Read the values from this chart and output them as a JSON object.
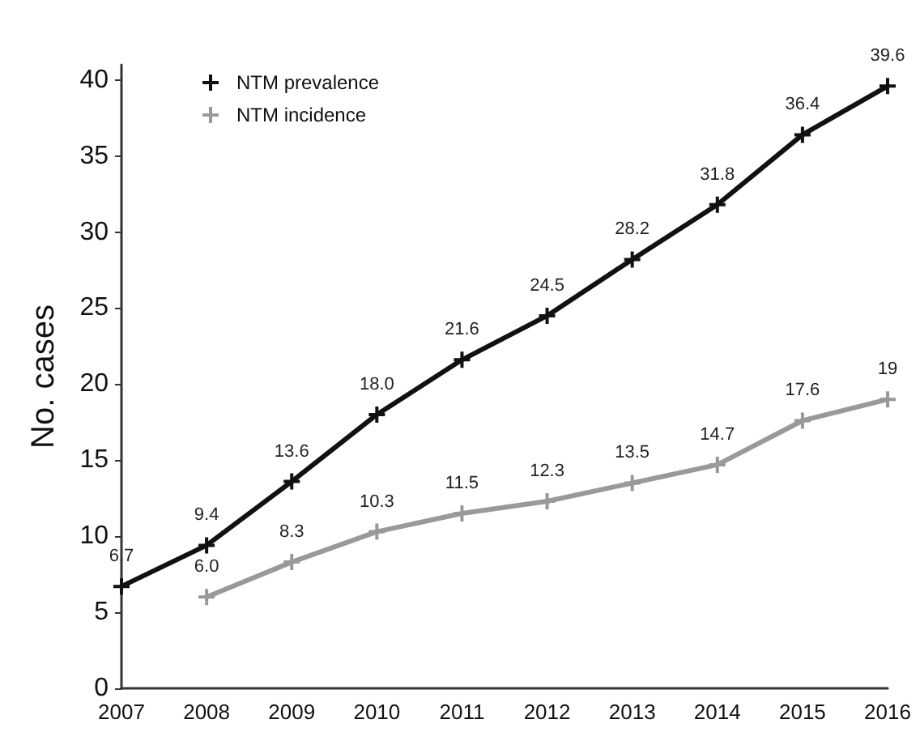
{
  "chart_data": {
    "type": "line",
    "ylabel": "No. cases",
    "categories": [
      "2007",
      "2008",
      "2009",
      "2010",
      "2011",
      "2012",
      "2013",
      "2014",
      "2015",
      "2016"
    ],
    "series": [
      {
        "name": "NTM prevalence",
        "color": "#111111",
        "values": [
          6.7,
          9.4,
          13.6,
          18.0,
          21.6,
          24.5,
          28.2,
          31.8,
          36.4,
          39.6
        ],
        "value_labels": [
          "6.7",
          "9.4",
          "13.6",
          "18.0",
          "21.6",
          "24.5",
          "28.2",
          "31.8",
          "36.4",
          "39.6"
        ]
      },
      {
        "name": "NTM incidence",
        "color": "#999999",
        "values": [
          null,
          6.0,
          8.3,
          10.3,
          11.5,
          12.3,
          13.5,
          14.7,
          17.6,
          19
        ],
        "value_labels": [
          null,
          "6.0",
          "8.3",
          "10.3",
          "11.5",
          "12.3",
          "13.5",
          "14.7",
          "17.6",
          "19"
        ]
      }
    ],
    "ylim": [
      0,
      41
    ],
    "yticks": [
      0,
      5,
      10,
      15,
      20,
      25,
      30,
      35,
      40
    ],
    "grid": false,
    "legend": "top left",
    "marker": "cross",
    "line_style": "solid"
  }
}
